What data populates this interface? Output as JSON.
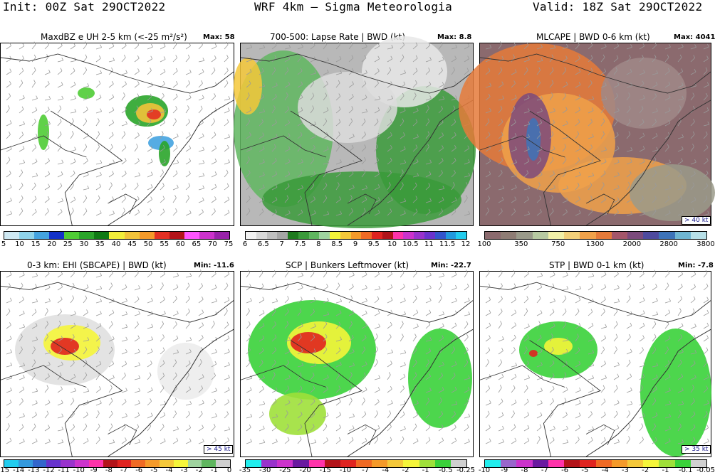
{
  "header": {
    "init": "Init: 00Z Sat 29OCT2022",
    "model": "WRF 4km — Sigma Meteorologia",
    "valid": "Valid: 18Z Sat 29OCT2022"
  },
  "panels": [
    {
      "title": "MaxdBZ e UH 2-5 km (<-25 m²/s²)",
      "stat_label": "Max:",
      "stat_value": "58",
      "ref_vector": "",
      "colorbar": [
        "#cfe9f3",
        "#8fd3ea",
        "#44a3e0",
        "#1432c8",
        "#4fcc35",
        "#2aa52a",
        "#0f7a14",
        "#f2ee3a",
        "#f2c33a",
        "#f59a2a",
        "#e33024",
        "#b3141a",
        "#ff55ff",
        "#cc33cc",
        "#9922aa"
      ],
      "ticks": [
        "5",
        "10",
        "15",
        "20",
        "25",
        "30",
        "35",
        "40",
        "45",
        "50",
        "55",
        "60",
        "65",
        "70",
        "75"
      ]
    },
    {
      "title": "700-500: Lapse Rate | BWD (kt)",
      "stat_label": "Max:",
      "stat_value": "8.8",
      "ref_vector": "",
      "colorbar": [
        "#f2f2f2",
        "#d9d9d9",
        "#bfbfbf",
        "#a6a6a6",
        "#1e7a1e",
        "#3a9a3a",
        "#5fb65f",
        "#9fd39f",
        "#f5f53a",
        "#f5c83a",
        "#f59a2a",
        "#f06a24",
        "#e02420",
        "#b0141a",
        "#ff33aa",
        "#cc33cc",
        "#9933cc",
        "#6a33cc",
        "#3355cc",
        "#2299dd",
        "#22ccee"
      ],
      "ticks": [
        "6",
        "6.5",
        "7",
        "7.5",
        "8",
        "8.5",
        "9",
        "9.5",
        "10",
        "10.5",
        "11",
        "11.5",
        "12"
      ]
    },
    {
      "title": "MLCAPE | BWD 0-6 km (kt)",
      "stat_label": "Max:",
      "stat_value": "4041",
      "ref_vector": "> 40 kt",
      "colorbar": [
        "#8b6a6e",
        "#8e7c74",
        "#9a9a8a",
        "#b7c9a1",
        "#f2f0a8",
        "#f3d07a",
        "#f0a14a",
        "#e57a3a",
        "#a4566a",
        "#7b4a7c",
        "#4e4a9e",
        "#3d73b8",
        "#6fb6d2",
        "#b7e0e8"
      ],
      "ticks": [
        "100",
        "350",
        "750",
        "1300",
        "2000",
        "2800",
        "3800"
      ]
    },
    {
      "title": "0-3 km: EHI (SBCAPE) | BWD (kt)",
      "stat_label": "Min:",
      "stat_value": "-11.6",
      "ref_vector": "> 45 kt",
      "colorbar": [
        "#22ccee",
        "#3399dd",
        "#3366cc",
        "#6633cc",
        "#9933cc",
        "#cc33cc",
        "#ff33aa",
        "#b3141a",
        "#e02420",
        "#f06a24",
        "#f59a2a",
        "#f5c83a",
        "#f5f53a",
        "#9fd39f",
        "#5fb65f",
        "#d0d0d0"
      ],
      "ticks": [
        "-15",
        "-14",
        "-13",
        "-12",
        "-11",
        "-10",
        "-9",
        "-8",
        "-7",
        "-6",
        "-5",
        "-4",
        "-3",
        "-2",
        "-1",
        "0"
      ]
    },
    {
      "title": "SCP | Bunkers Leftmover (kt)",
      "stat_label": "Min:",
      "stat_value": "-22.7",
      "ref_vector": "",
      "colorbar": [
        "#22eeee",
        "#9933cc",
        "#cc33cc",
        "#6a1aa0",
        "#ff33aa",
        "#b3141a",
        "#e02420",
        "#f06a24",
        "#f59a2a",
        "#f5c83a",
        "#f5f53a",
        "#9fe03a",
        "#3ad13a",
        "#d0d0d0"
      ],
      "ticks": [
        "-35",
        "-30",
        "-25",
        "-20",
        "-15",
        "-10",
        "-7",
        "-4",
        "-2",
        "-1",
        "-0.5",
        "-0.25"
      ]
    },
    {
      "title": "STP | BWD 0-1 km (kt)",
      "stat_label": "Min:",
      "stat_value": "-7.8",
      "ref_vector": "> 35 kt",
      "colorbar": [
        "#22eeee",
        "#9966cc",
        "#cc33cc",
        "#6a1aa0",
        "#ff33aa",
        "#b3141a",
        "#e02420",
        "#f06a24",
        "#f59a2a",
        "#f5c83a",
        "#f5f53a",
        "#9fe03a",
        "#3ad13a",
        "#d0d0d0"
      ],
      "ticks": [
        "-10",
        "-9",
        "-8",
        "-7",
        "-6",
        "-5",
        "-4",
        "-3",
        "-2",
        "-1",
        "-0.1",
        "-0.05"
      ]
    }
  ]
}
